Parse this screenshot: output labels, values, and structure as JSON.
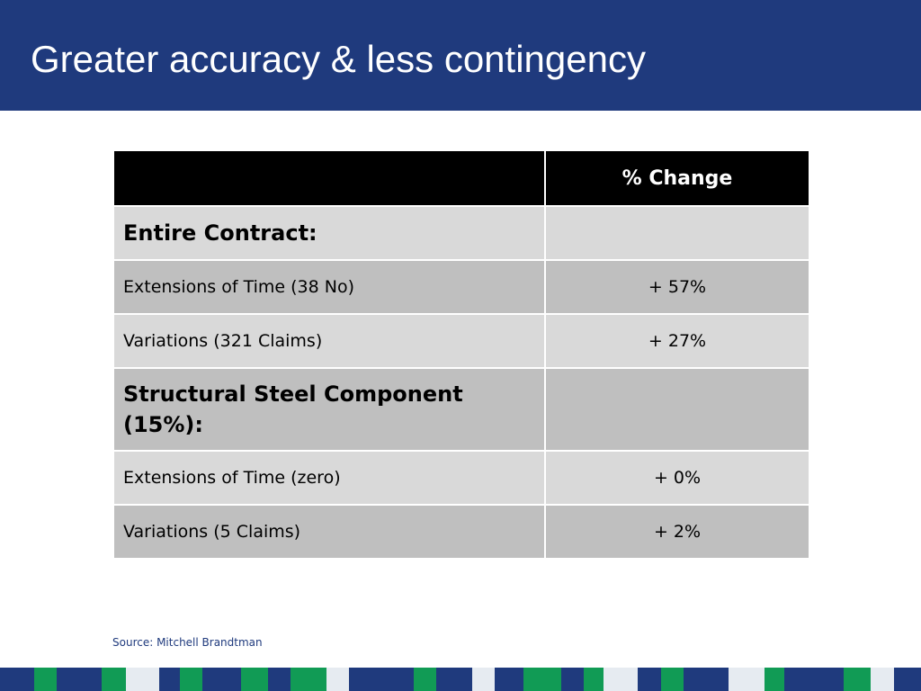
{
  "slide": {
    "title": "Greater accuracy & less contingency",
    "source": "Source: Mitchell Brandtman"
  },
  "table": {
    "header": [
      "",
      "% Change"
    ],
    "rows": [
      {
        "label": "Entire Contract:",
        "value": "",
        "type": "section"
      },
      {
        "label": "Extensions of Time (38 No)",
        "value": "+ 57%",
        "type": "item"
      },
      {
        "label": "Variations (321 Claims)",
        "value": "+ 27%",
        "type": "item"
      },
      {
        "label": "Structural Steel Component (15%):",
        "value": "",
        "type": "section"
      },
      {
        "label": "Extensions of Time (zero)",
        "value": "+ 0%",
        "type": "item"
      },
      {
        "label": "Variations (5 Claims)",
        "value": "+ 2%",
        "type": "item"
      }
    ]
  },
  "colors": {
    "header_bg": "#1f3a7d",
    "accent_green": "#119b55",
    "light_block": "#e6ebf1",
    "row_light": "#d9d9d9",
    "row_dark": "#bfbfbf"
  }
}
